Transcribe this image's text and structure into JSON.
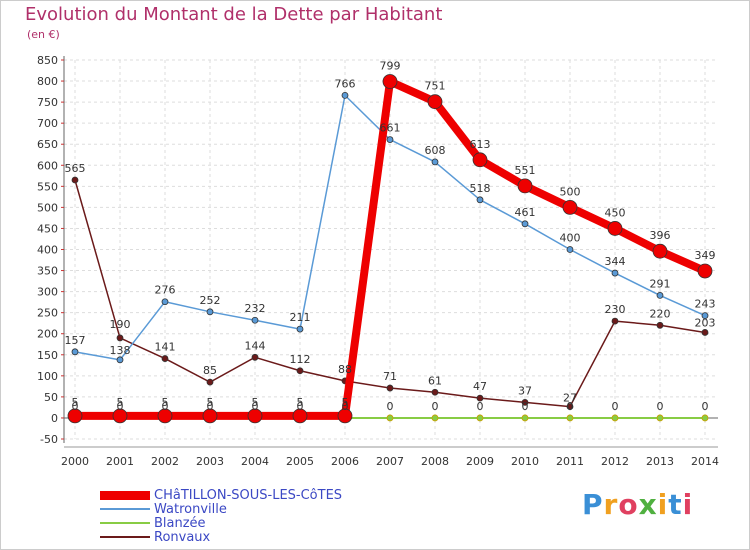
{
  "title": "Evolution du Montant de la Dette par Habitant",
  "unit": "(en €)",
  "logo": "Proxiti",
  "chart_data": {
    "type": "line",
    "title": "Evolution du Montant de la Dette par Habitant",
    "ylabel": "(en €)",
    "xlabel": "",
    "ylim": [
      -50,
      850
    ],
    "yticks": [
      -50,
      0,
      50,
      100,
      150,
      200,
      250,
      300,
      350,
      400,
      450,
      500,
      550,
      600,
      650,
      700,
      750,
      800,
      850
    ],
    "grid": true,
    "categories": [
      "2000",
      "2001",
      "2002",
      "2003",
      "2004",
      "2005",
      "2006",
      "2007",
      "2008",
      "2009",
      "2010",
      "2011",
      "2012",
      "2013",
      "2014"
    ],
    "series": [
      {
        "name": "Blanzée",
        "color": "#88cc44",
        "values": [
          0,
          0,
          0,
          0,
          0,
          0,
          0,
          0,
          0,
          0,
          0,
          0,
          0,
          0,
          0
        ],
        "labels": [
          "",
          "",
          "",
          "",
          "",
          "",
          "",
          "0",
          "0",
          "0",
          "0",
          "0",
          "0",
          "0",
          "0"
        ]
      },
      {
        "name": "Ronvaux",
        "color": "#6b1a1a",
        "values": [
          565,
          190,
          141,
          85,
          144,
          112,
          88,
          71,
          61,
          47,
          37,
          27,
          230,
          220,
          203
        ],
        "labels": [
          "565",
          "190",
          "141",
          "85",
          "144",
          "112",
          "88",
          "71",
          "61",
          "47",
          "37",
          "27",
          "230",
          "220",
          "203"
        ]
      },
      {
        "name": "Watronville",
        "color": "#5a9ad6",
        "values": [
          157,
          138,
          276,
          252,
          232,
          211,
          766,
          661,
          608,
          518,
          461,
          400,
          344,
          291,
          243
        ],
        "labels": [
          "157",
          "138",
          "276",
          "252",
          "232",
          "211",
          "766",
          "661",
          "608",
          "518",
          "461",
          "400",
          "344",
          "291",
          "243"
        ]
      },
      {
        "name": "CHâTILLON-SOUS-LES-CôTES",
        "color": "#ee0000",
        "values": [
          5,
          5,
          5,
          5,
          5,
          5,
          5,
          799,
          751,
          613,
          551,
          500,
          450,
          396,
          349
        ],
        "labels": [
          "5",
          "5",
          "5",
          "5",
          "5",
          "5",
          "5",
          "799",
          "751",
          "613",
          "551",
          "500",
          "450",
          "396",
          "349"
        ]
      }
    ],
    "extra_labels": [
      "0",
      "0",
      "0",
      "0",
      "0",
      "0",
      "0"
    ]
  },
  "legend": [
    {
      "name": "CHâTILLON-SOUS-LES-CôTES",
      "color": "#ee0000",
      "weight": 9
    },
    {
      "name": "Watronville",
      "color": "#5a9ad6",
      "weight": 2
    },
    {
      "name": "Blanzée",
      "color": "#88cc44",
      "weight": 2
    },
    {
      "name": "Ronvaux",
      "color": "#6b1a1a",
      "weight": 2
    }
  ]
}
